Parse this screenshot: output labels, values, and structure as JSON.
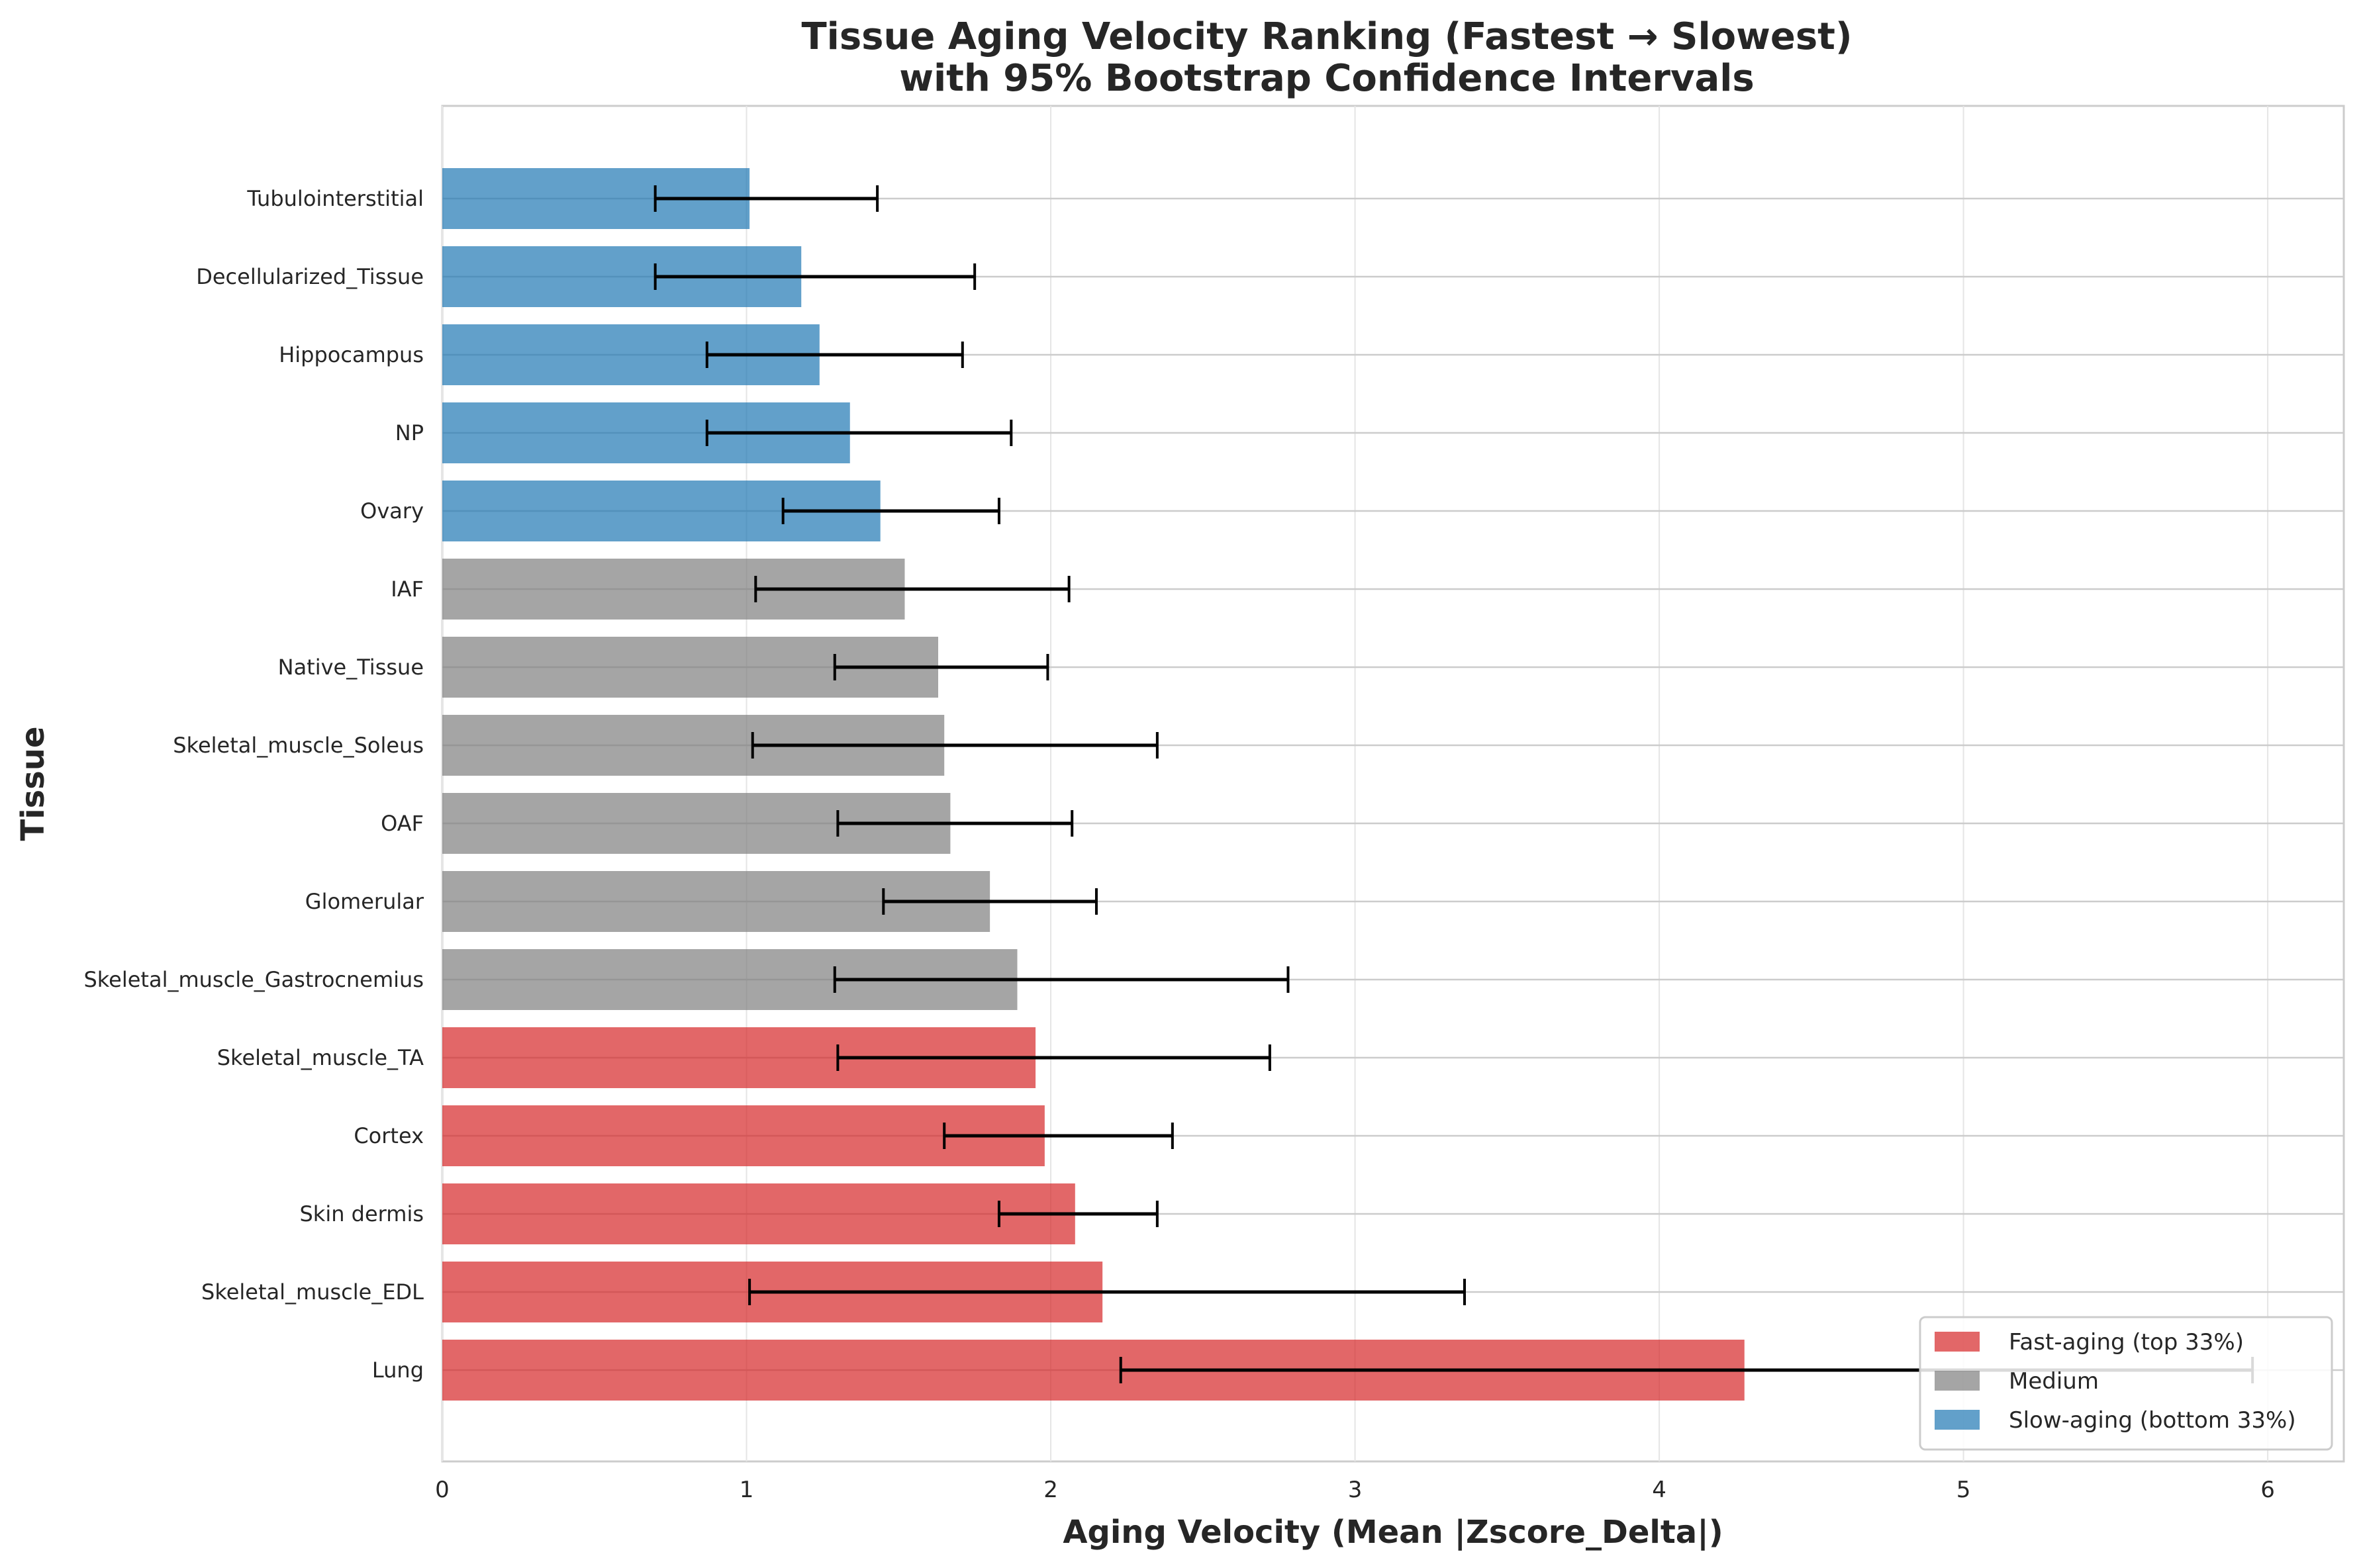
{
  "chart_data": {
    "type": "bar",
    "orientation": "horizontal",
    "title": "Tissue Aging Velocity Ranking (Fastest → Slowest)",
    "subtitle": "with 95% Bootstrap Confidence Intervals",
    "xlabel": "Aging Velocity (Mean |Zscore_Delta|)",
    "ylabel": "Tissue",
    "xlim": [
      0,
      6.25
    ],
    "xticks": [
      0,
      1,
      2,
      3,
      4,
      5,
      6
    ],
    "grid": true,
    "legend_position": "lower right",
    "groups": {
      "fast": {
        "label": "Fast-aging (top 33%)",
        "color": "#d62728"
      },
      "medium": {
        "label": "Medium",
        "color": "#7f7f7f"
      },
      "slow": {
        "label": "Slow-aging (bottom 33%)",
        "color": "#1f77b4"
      }
    },
    "categories": [
      "Tubulointerstitial",
      "Decellularized_Tissue",
      "Hippocampus",
      "NP",
      "Ovary",
      "IAF",
      "Native_Tissue",
      "Skeletal_muscle_Soleus",
      "OAF",
      "Glomerular",
      "Skeletal_muscle_Gastrocnemius",
      "Skeletal_muscle_TA",
      "Cortex",
      "Skin dermis",
      "Skeletal_muscle_EDL",
      "Lung"
    ],
    "values": [
      1.01,
      1.18,
      1.24,
      1.34,
      1.44,
      1.52,
      1.63,
      1.65,
      1.67,
      1.8,
      1.89,
      1.95,
      1.98,
      2.08,
      2.17,
      4.28
    ],
    "ci_low": [
      0.7,
      0.7,
      0.87,
      0.87,
      1.12,
      1.03,
      1.29,
      1.02,
      1.3,
      1.45,
      1.29,
      1.3,
      1.65,
      1.83,
      1.01,
      2.23
    ],
    "ci_high": [
      1.43,
      1.75,
      1.71,
      1.87,
      1.83,
      2.06,
      1.99,
      2.35,
      2.07,
      2.15,
      2.78,
      2.72,
      2.4,
      2.35,
      3.36,
      5.95
    ],
    "group": [
      "slow",
      "slow",
      "slow",
      "slow",
      "slow",
      "medium",
      "medium",
      "medium",
      "medium",
      "medium",
      "medium",
      "fast",
      "fast",
      "fast",
      "fast",
      "fast"
    ]
  }
}
